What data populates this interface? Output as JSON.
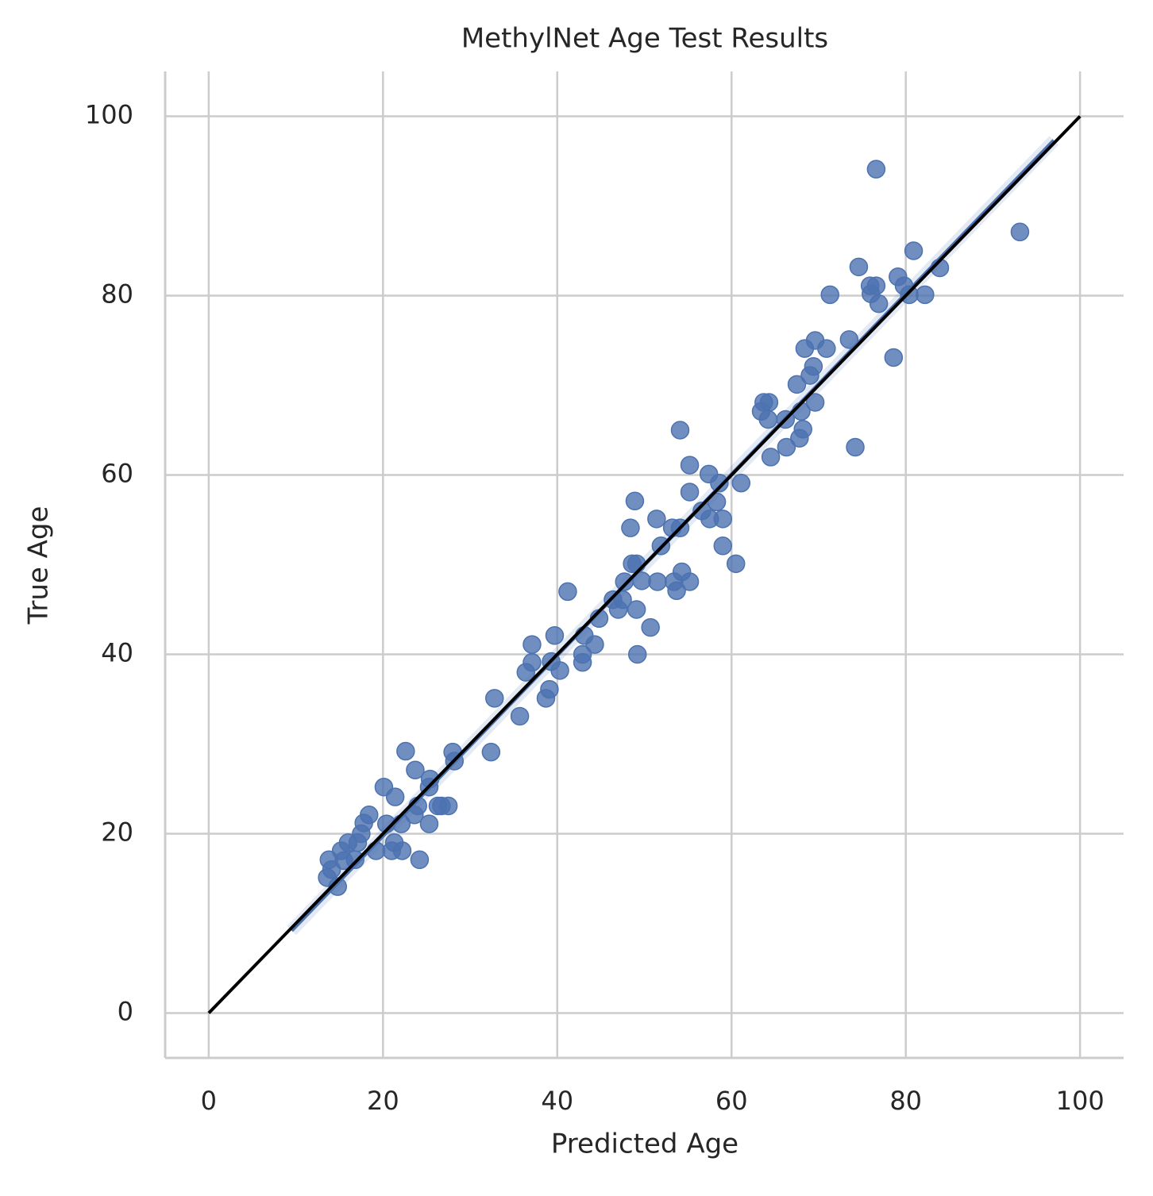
{
  "chart_data": {
    "type": "scatter",
    "title": "MethylNet Age Test Results",
    "x_label": "Predicted Age",
    "y_label": "True Age",
    "color": "#4c72b0",
    "x": [
      76.6,
      93.1,
      80.9,
      74.6,
      83.9,
      79.1,
      75.9,
      76.6,
      76.0,
      71.3,
      80.4,
      82.2,
      76.9,
      79.8,
      78.6,
      73.5,
      69.6,
      68.4,
      70.9,
      69.4,
      69.0,
      67.5,
      69.6,
      64.3,
      63.7,
      63.4,
      68.0,
      64.2,
      66.2,
      68.2,
      66.3,
      74.2,
      64.5,
      67.8,
      54.1,
      55.2,
      57.4,
      58.6,
      61.1,
      58.3,
      55.2,
      48.9,
      51.4,
      48.4,
      54.1,
      53.2,
      57.5,
      59.0,
      56.6,
      59.0,
      51.9,
      60.5,
      48.6,
      49.1,
      54.3,
      49.7,
      51.5,
      53.4,
      55.2,
      47.7,
      53.7,
      46.4,
      47.5,
      47.0,
      49.1,
      44.8,
      50.7,
      41.2,
      39.7,
      37.1,
      44.3,
      43.1,
      49.2,
      42.9,
      39.3,
      37.1,
      42.9,
      40.3,
      36.4,
      39.1,
      38.7,
      32.8,
      35.7,
      32.4,
      22.6,
      28.0,
      28.2,
      23.7,
      25.4,
      25.3,
      20.1,
      21.4,
      24.0,
      27.5,
      26.3,
      26.7,
      23.6,
      18.4,
      17.8,
      25.3,
      22.1,
      20.4,
      17.5,
      17.1,
      21.0,
      19.2,
      22.2,
      15.2,
      16.8,
      24.2,
      13.8,
      14.1,
      13.6,
      14.8,
      15.5,
      16.0,
      21.3
    ],
    "values": [
      94.1,
      87.1,
      85.0,
      83.2,
      83.1,
      82.1,
      81.1,
      81.1,
      80.2,
      80.1,
      80.1,
      80.1,
      79.1,
      81.1,
      73.1,
      75.1,
      75.0,
      74.1,
      74.1,
      72.1,
      71.1,
      70.1,
      68.1,
      68.1,
      68.1,
      67.1,
      67.1,
      66.2,
      66.2,
      65.1,
      63.1,
      63.1,
      62.0,
      64.1,
      65.0,
      61.1,
      60.1,
      59.1,
      59.1,
      57.0,
      58.1,
      57.1,
      55.1,
      54.1,
      54.1,
      54.1,
      55.1,
      55.1,
      56.0,
      52.1,
      52.1,
      50.1,
      50.1,
      50.1,
      49.2,
      48.2,
      48.1,
      48.1,
      48.1,
      48.1,
      47.1,
      46.1,
      46.1,
      45.0,
      45.0,
      44.0,
      43.0,
      47.0,
      42.1,
      41.1,
      41.1,
      42.1,
      40.0,
      40.0,
      39.2,
      39.1,
      39.1,
      38.2,
      38.0,
      36.1,
      35.1,
      35.1,
      33.1,
      29.1,
      29.2,
      29.1,
      28.1,
      27.1,
      26.1,
      25.2,
      25.2,
      24.1,
      23.1,
      23.1,
      23.1,
      23.1,
      22.1,
      22.1,
      21.2,
      21.1,
      21.1,
      21.1,
      20.0,
      19.0,
      18.1,
      18.1,
      18.1,
      18.1,
      17.1,
      17.1,
      17.1,
      16.0,
      15.1,
      14.1,
      17.0,
      19.0,
      19.0
    ],
    "regression_line": {
      "x": [
        9.5,
        97.0
      ],
      "y": [
        9.2,
        97.3
      ],
      "color": "#4c72b0"
    },
    "identity_line": {
      "x": [
        0,
        100
      ],
      "y": [
        0,
        100
      ],
      "color": "#000000"
    },
    "xlim": [
      -5,
      105
    ],
    "ylim": [
      -5,
      105
    ],
    "xticks": [
      0,
      20,
      40,
      60,
      80,
      100
    ],
    "yticks": [
      0,
      20,
      40,
      60,
      80,
      100
    ],
    "grid": true
  }
}
